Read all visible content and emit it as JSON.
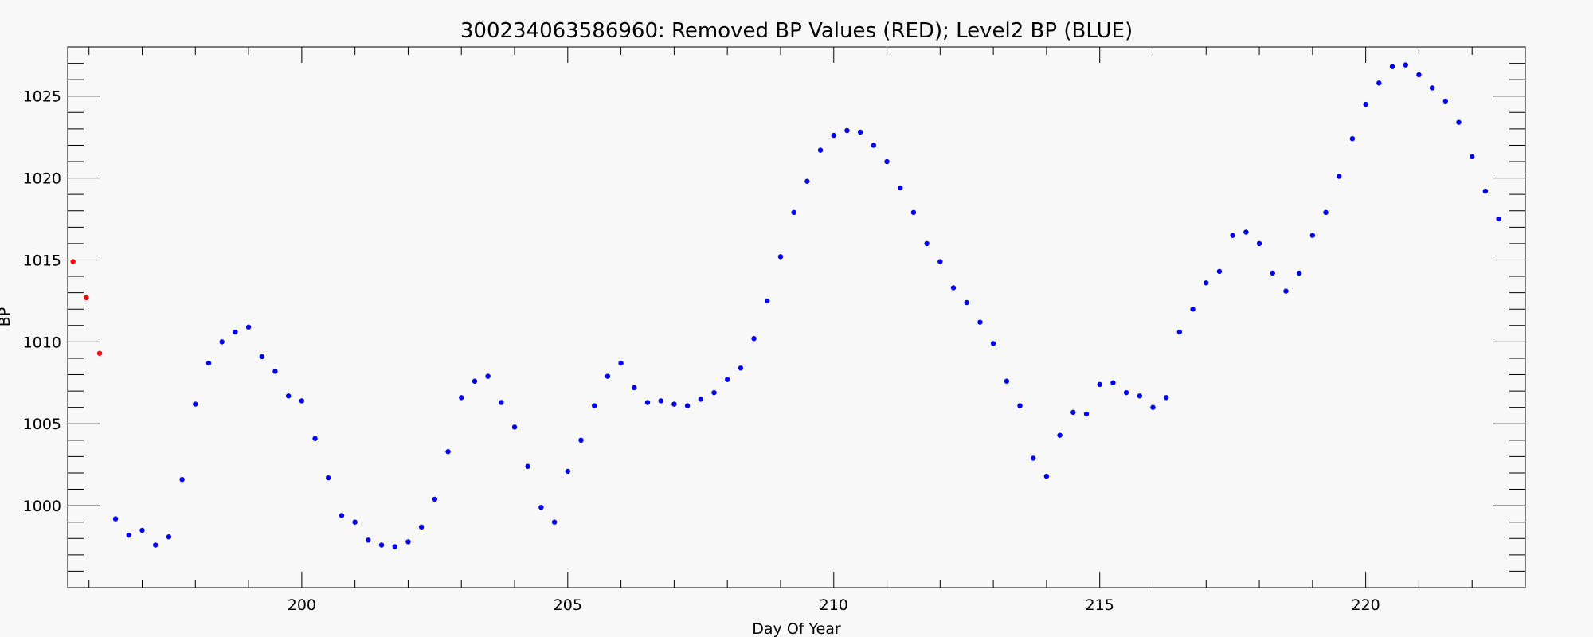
{
  "chart_data": {
    "type": "scatter",
    "title": "300234063586960: Removed BP Values (RED); Level2 BP (BLUE)",
    "xlabel": "Day Of Year",
    "ylabel": "BP",
    "xlim": [
      195.6,
      223.0
    ],
    "ylim": [
      995,
      1028
    ],
    "x_ticks": [
      200,
      205,
      210,
      215,
      220
    ],
    "y_ticks": [
      1000,
      1005,
      1010,
      1015,
      1020,
      1025
    ],
    "grid": false,
    "series": [
      {
        "color": "#ff0000",
        "points": [
          [
            195.7,
            1014.9
          ],
          [
            195.95,
            1012.7
          ],
          [
            196.2,
            1009.3
          ]
        ]
      },
      {
        "color": "#0000ee",
        "points": [
          [
            196.5,
            999.2
          ],
          [
            196.75,
            998.2
          ],
          [
            197.0,
            998.5
          ],
          [
            197.25,
            997.6
          ],
          [
            197.5,
            998.1
          ],
          [
            197.75,
            1001.6
          ],
          [
            198.0,
            1006.2
          ],
          [
            198.25,
            1008.7
          ],
          [
            198.5,
            1010.0
          ],
          [
            198.75,
            1010.6
          ],
          [
            199.0,
            1010.9
          ],
          [
            199.25,
            1009.1
          ],
          [
            199.5,
            1008.2
          ],
          [
            199.75,
            1006.7
          ],
          [
            200.0,
            1006.4
          ],
          [
            200.25,
            1004.1
          ],
          [
            200.5,
            1001.7
          ],
          [
            200.75,
            999.4
          ],
          [
            201.0,
            999.0
          ],
          [
            201.25,
            997.9
          ],
          [
            201.5,
            997.6
          ],
          [
            201.75,
            997.5
          ],
          [
            202.0,
            997.8
          ],
          [
            202.25,
            998.7
          ],
          [
            202.5,
            1000.4
          ],
          [
            202.75,
            1003.3
          ],
          [
            203.0,
            1006.6
          ],
          [
            203.25,
            1007.6
          ],
          [
            203.5,
            1007.9
          ],
          [
            203.75,
            1006.3
          ],
          [
            204.0,
            1004.8
          ],
          [
            204.25,
            1002.4
          ],
          [
            204.5,
            999.9
          ],
          [
            204.75,
            999.0
          ],
          [
            205.0,
            1002.1
          ],
          [
            205.25,
            1004.0
          ],
          [
            205.5,
            1006.1
          ],
          [
            205.75,
            1007.9
          ],
          [
            206.0,
            1008.7
          ],
          [
            206.25,
            1007.2
          ],
          [
            206.5,
            1006.3
          ],
          [
            206.75,
            1006.4
          ],
          [
            207.0,
            1006.2
          ],
          [
            207.25,
            1006.1
          ],
          [
            207.5,
            1006.5
          ],
          [
            207.75,
            1006.9
          ],
          [
            208.0,
            1007.7
          ],
          [
            208.25,
            1008.4
          ],
          [
            208.5,
            1010.2
          ],
          [
            208.75,
            1012.5
          ],
          [
            209.0,
            1015.2
          ],
          [
            209.25,
            1017.9
          ],
          [
            209.5,
            1019.8
          ],
          [
            209.75,
            1021.7
          ],
          [
            210.0,
            1022.6
          ],
          [
            210.25,
            1022.9
          ],
          [
            210.5,
            1022.8
          ],
          [
            210.75,
            1022.0
          ],
          [
            211.0,
            1021.0
          ],
          [
            211.25,
            1019.4
          ],
          [
            211.5,
            1017.9
          ],
          [
            211.75,
            1016.0
          ],
          [
            212.0,
            1014.9
          ],
          [
            212.25,
            1013.3
          ],
          [
            212.5,
            1012.4
          ],
          [
            212.75,
            1011.2
          ],
          [
            213.0,
            1009.9
          ],
          [
            213.25,
            1007.6
          ],
          [
            213.5,
            1006.1
          ],
          [
            213.75,
            1002.9
          ],
          [
            214.0,
            1001.8
          ],
          [
            214.25,
            1004.3
          ],
          [
            214.5,
            1005.7
          ],
          [
            214.75,
            1005.6
          ],
          [
            215.0,
            1007.4
          ],
          [
            215.25,
            1007.5
          ],
          [
            215.5,
            1006.9
          ],
          [
            215.75,
            1006.7
          ],
          [
            216.0,
            1006.0
          ],
          [
            216.25,
            1006.6
          ],
          [
            216.5,
            1010.6
          ],
          [
            216.75,
            1012.0
          ],
          [
            217.0,
            1013.6
          ],
          [
            217.25,
            1014.3
          ],
          [
            217.5,
            1016.5
          ],
          [
            217.75,
            1016.7
          ],
          [
            218.0,
            1016.0
          ],
          [
            218.25,
            1014.2
          ],
          [
            218.5,
            1013.1
          ],
          [
            218.75,
            1014.2
          ],
          [
            219.0,
            1016.5
          ],
          [
            219.25,
            1017.9
          ],
          [
            219.5,
            1020.1
          ],
          [
            219.75,
            1022.4
          ],
          [
            220.0,
            1024.5
          ],
          [
            220.25,
            1025.8
          ],
          [
            220.5,
            1026.8
          ],
          [
            220.75,
            1026.9
          ],
          [
            221.0,
            1026.3
          ],
          [
            221.25,
            1025.5
          ],
          [
            221.5,
            1024.7
          ],
          [
            221.75,
            1023.4
          ],
          [
            222.0,
            1021.3
          ],
          [
            222.25,
            1019.2
          ],
          [
            222.5,
            1017.5
          ]
        ]
      }
    ]
  }
}
